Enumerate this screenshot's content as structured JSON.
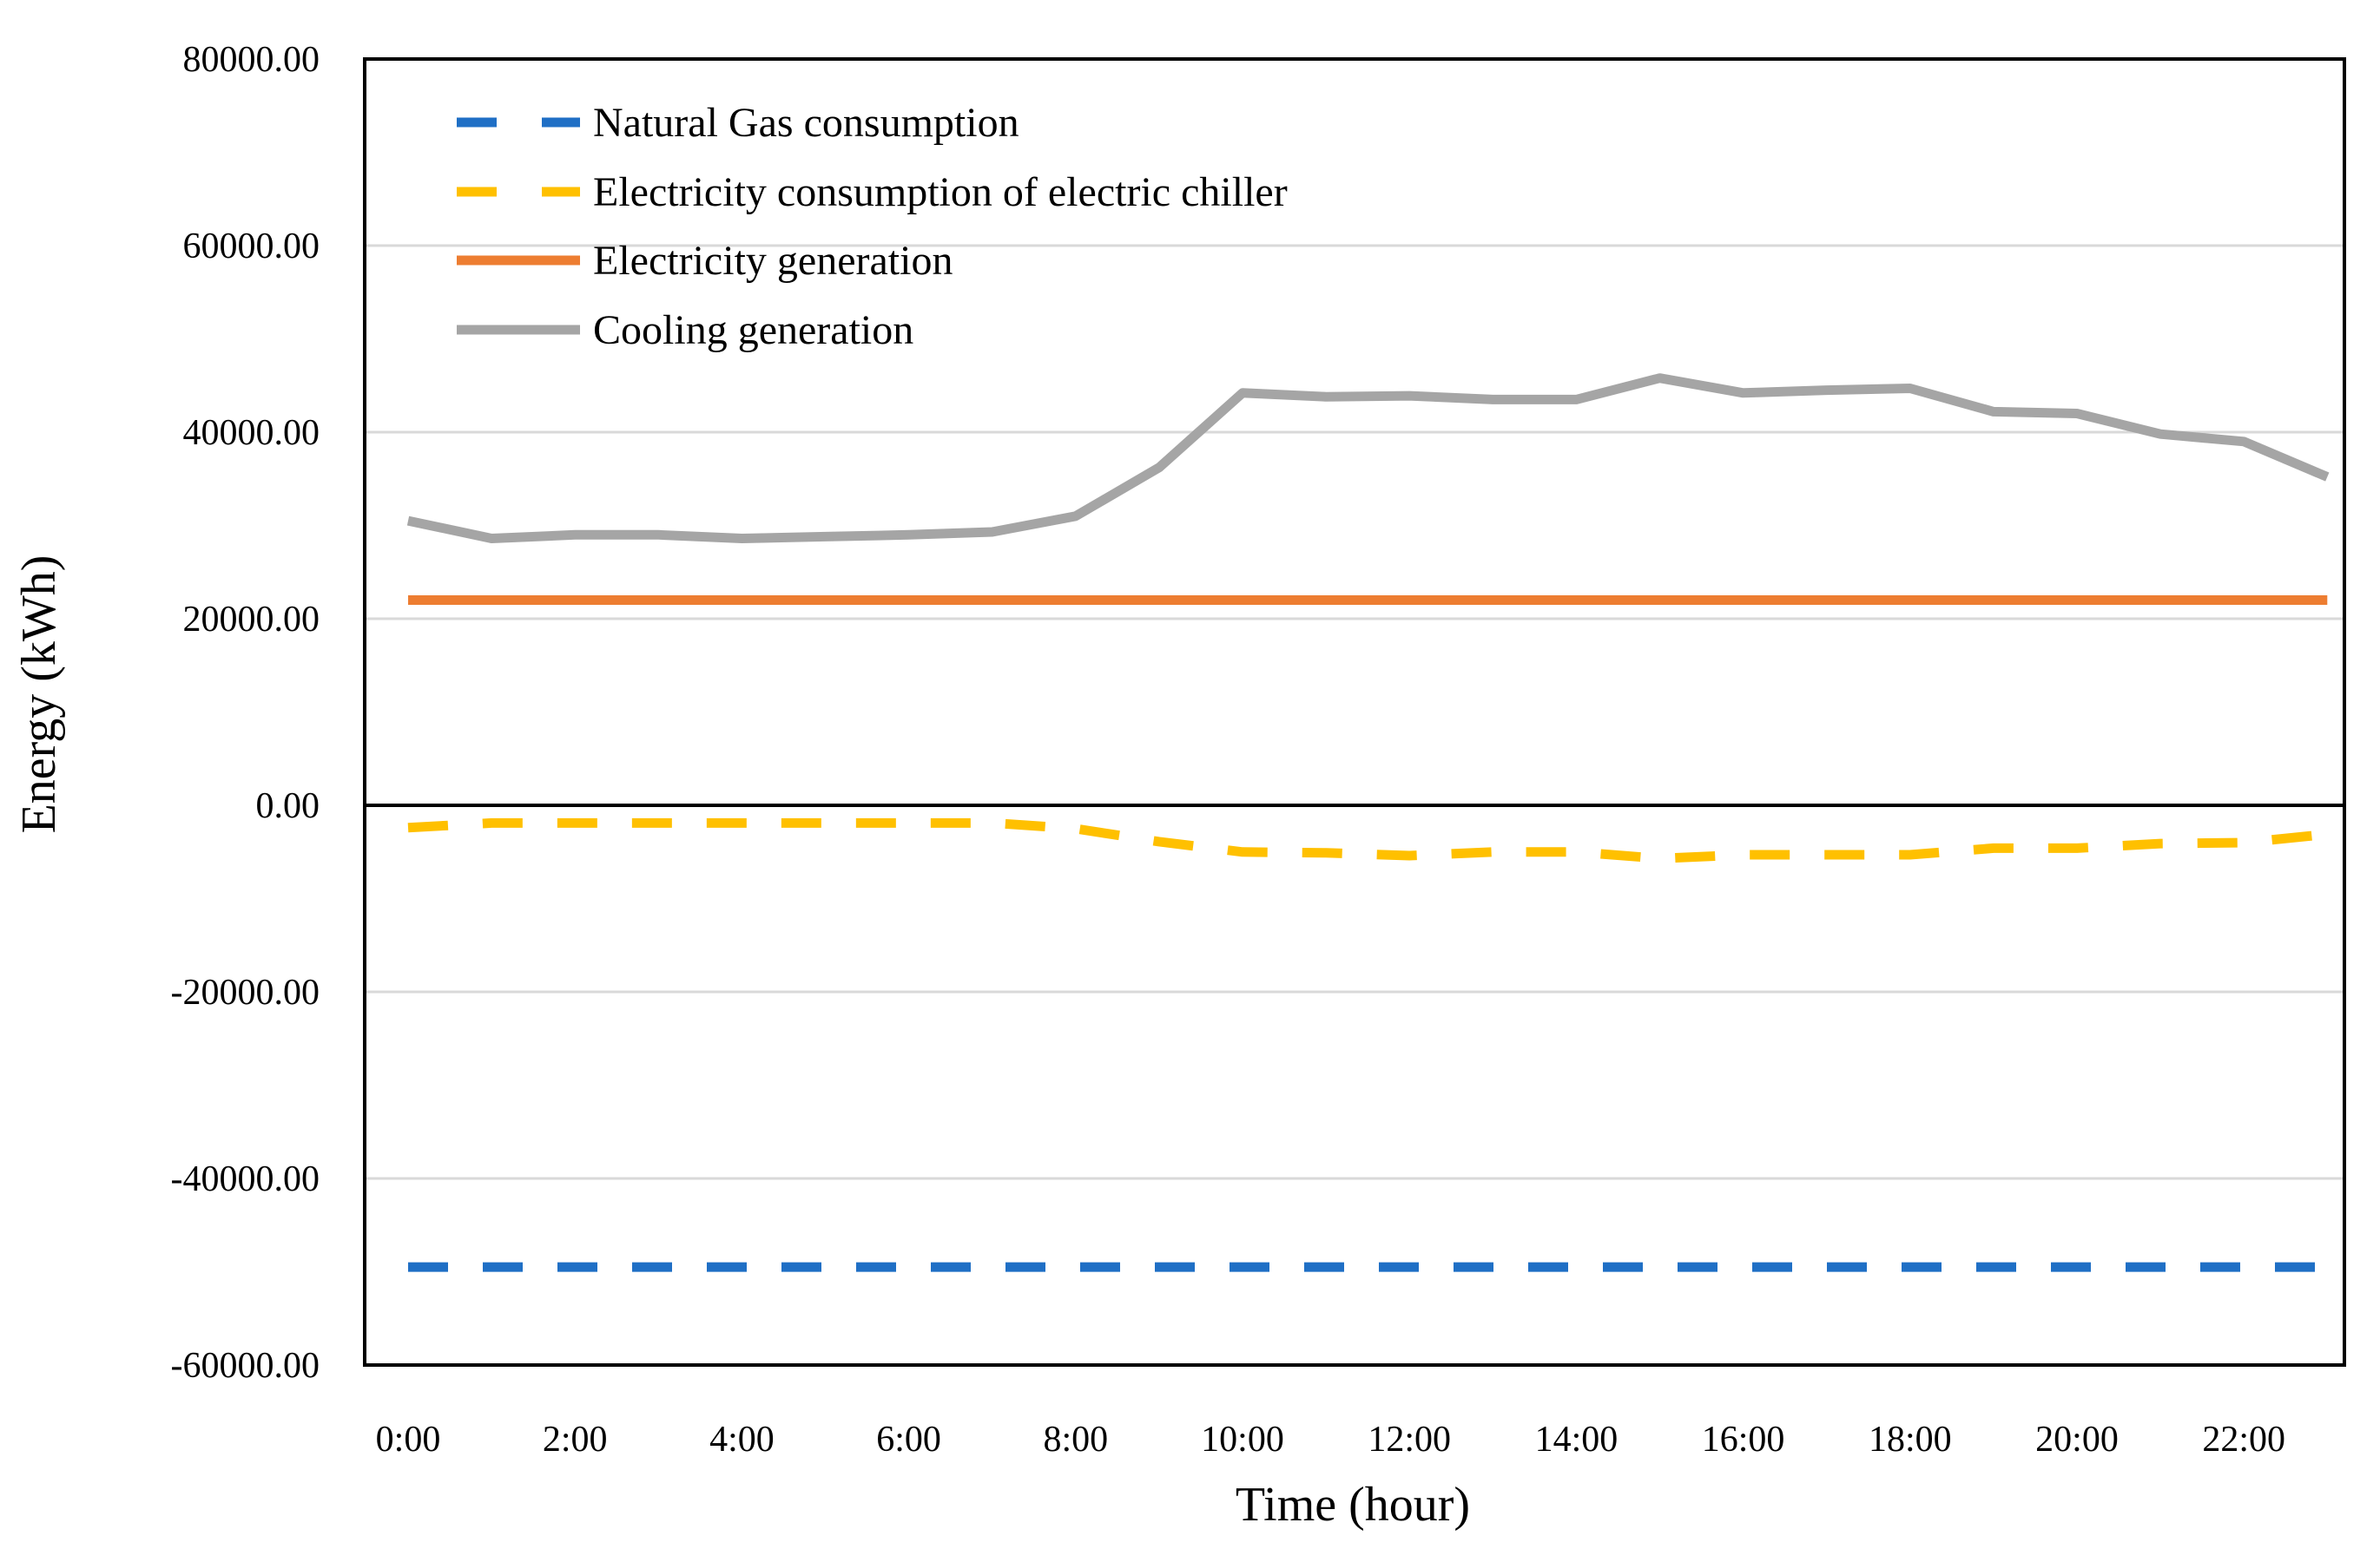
{
  "chart_data": {
    "type": "line",
    "title": "",
    "xlabel": "Time (hour)",
    "ylabel": "Energy (kWh)",
    "ylim": [
      -60000,
      80000
    ],
    "y_ticks": [
      80000,
      60000,
      40000,
      20000,
      0,
      -20000,
      -40000,
      -60000
    ],
    "y_tick_labels": [
      "80000.00",
      "60000.00",
      "40000.00",
      "20000.00",
      "0.00",
      "-20000.00",
      "-40000.00",
      "-60000.00"
    ],
    "x": [
      0,
      1,
      2,
      3,
      4,
      5,
      6,
      7,
      8,
      9,
      10,
      11,
      12,
      13,
      14,
      15,
      16,
      17,
      18,
      19,
      20,
      21,
      22,
      23
    ],
    "x_tick_labels": [
      "0:00",
      "2:00",
      "4:00",
      "6:00",
      "8:00",
      "10:00",
      "12:00",
      "14:00",
      "16:00",
      "18:00",
      "20:00",
      "22:00"
    ],
    "x_tick_hours": [
      0,
      2,
      4,
      6,
      8,
      10,
      12,
      14,
      16,
      18,
      20,
      22
    ],
    "grid": true,
    "legend_position": "top-left",
    "series": [
      {
        "name": "Natural Gas consumption",
        "color": "#1f6fc5",
        "style": "dashed",
        "values": [
          -49500,
          -49500,
          -49500,
          -49500,
          -49500,
          -49500,
          -49500,
          -49500,
          -49500,
          -49500,
          -49500,
          -49500,
          -49500,
          -49500,
          -49500,
          -49500,
          -49500,
          -49500,
          -49500,
          -49500,
          -49500,
          -49500,
          -49500,
          -49500
        ]
      },
      {
        "name": "Electricity consumption of electric chiller",
        "color": "#ffc000",
        "style": "dashed",
        "values": [
          -2400,
          -1900,
          -1900,
          -1900,
          -1900,
          -1900,
          -1900,
          -1900,
          -2500,
          -3900,
          -5000,
          -5100,
          -5400,
          -5000,
          -5000,
          -5700,
          -5300,
          -5300,
          -5300,
          -4600,
          -4600,
          -4100,
          -4000,
          -3100
        ]
      },
      {
        "name": "Electricity generation",
        "color": "#ed7d31",
        "style": "solid",
        "values": [
          22000,
          22000,
          22000,
          22000,
          22000,
          22000,
          22000,
          22000,
          22000,
          22000,
          22000,
          22000,
          22000,
          22000,
          22000,
          22000,
          22000,
          22000,
          22000,
          22000,
          22000,
          22000,
          22000,
          22000
        ]
      },
      {
        "name": "Cooling generation",
        "color": "#a5a5a5",
        "style": "solid",
        "values": [
          30500,
          28600,
          29000,
          29000,
          28600,
          28800,
          29000,
          29300,
          31000,
          36200,
          44200,
          43800,
          43900,
          43500,
          43500,
          45800,
          44200,
          44500,
          44700,
          42200,
          42000,
          39800,
          39000,
          35200
        ]
      }
    ]
  }
}
